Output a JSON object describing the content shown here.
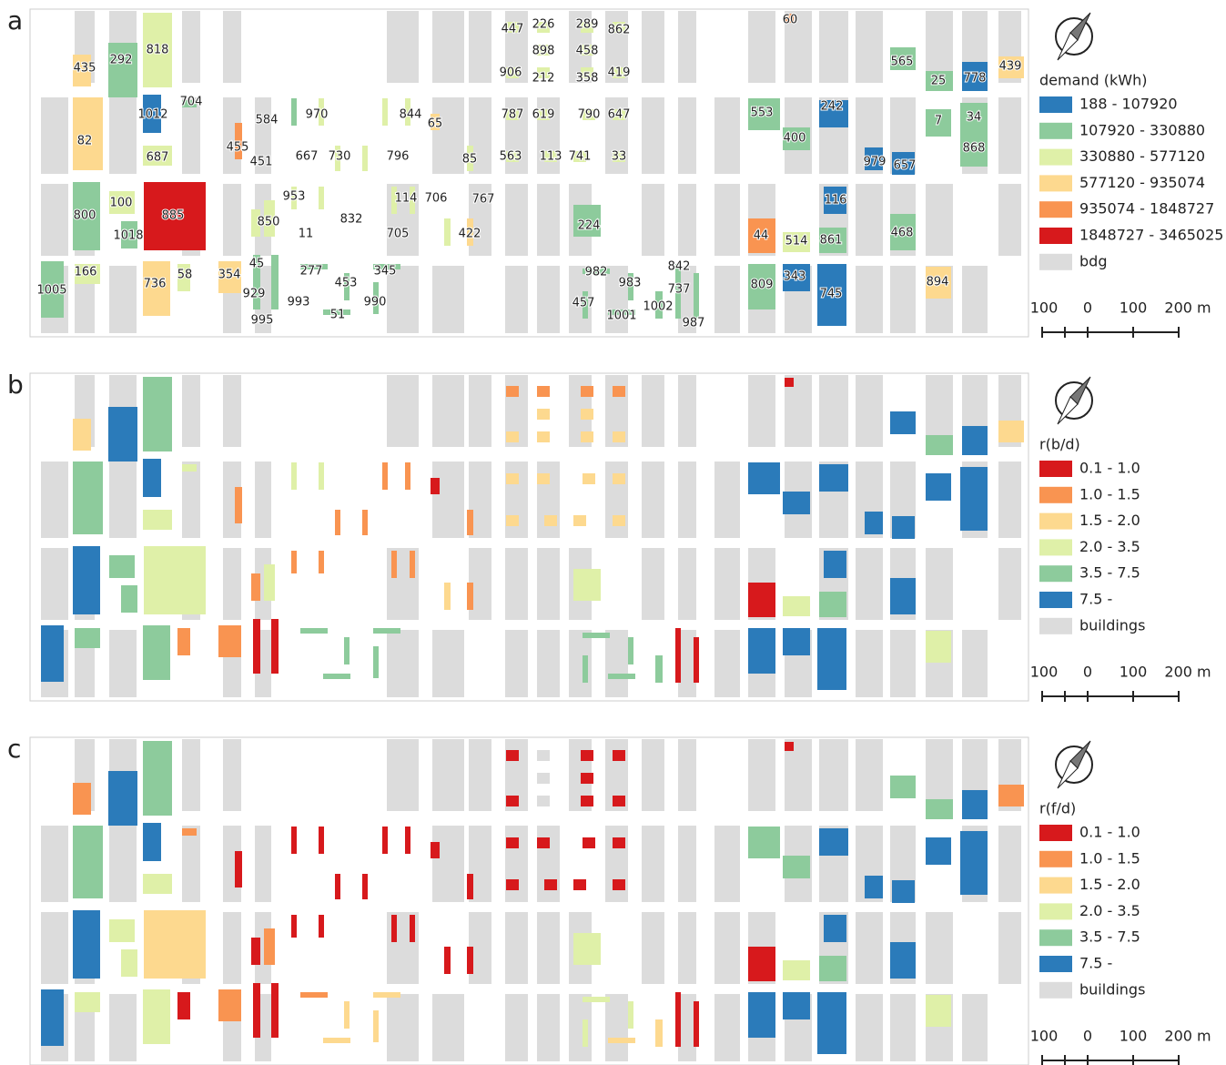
{
  "panels": [
    {
      "letter": "a",
      "legend": {
        "title": "demand (kWh)",
        "items": [
          {
            "label": "188 - 107920",
            "color": "#2b7bba"
          },
          {
            "label": "107920 - 330880",
            "color": "#8dcb9c"
          },
          {
            "label": "330880 - 577120",
            "color": "#dff0a8"
          },
          {
            "label": "577120 - 935074",
            "color": "#fdd98f"
          },
          {
            "label": "935074 - 1848727",
            "color": "#f99451"
          },
          {
            "label": "1848727 - 3465025",
            "color": "#d7191c"
          },
          {
            "label": "bdg",
            "color": "#dcdcdc"
          }
        ]
      },
      "scale": [
        "100",
        "0",
        "100",
        "200 m"
      ],
      "labels": [
        "447",
        "226",
        "289",
        "862",
        "898",
        "458",
        "435",
        "292",
        "818",
        "906",
        "212",
        "358",
        "419",
        "60",
        "565",
        "25",
        "778",
        "439",
        "1012",
        "704",
        "584",
        "970",
        "844",
        "65",
        "787",
        "619",
        "790",
        "647",
        "553",
        "242",
        "7",
        "34",
        "82",
        "687",
        "455",
        "451",
        "667",
        "730",
        "796",
        "85",
        "563",
        "113",
        "741",
        "33",
        "400",
        "979",
        "657",
        "868",
        "100",
        "953",
        "114",
        "706",
        "767",
        "116",
        "800",
        "885",
        "850",
        "832",
        "224",
        "1018",
        "11",
        "705",
        "422",
        "44",
        "514",
        "861",
        "468",
        "166",
        "45",
        "277",
        "345",
        "982",
        "983",
        "842",
        "354",
        "736",
        "58",
        "1005",
        "929",
        "453",
        "993",
        "990",
        "457",
        "1002",
        "737",
        "809",
        "343",
        "745",
        "894",
        "51",
        "995",
        "1001",
        "987"
      ]
    },
    {
      "letter": "b",
      "legend": {
        "title": "r(b/d)",
        "items": [
          {
            "label": "0.1 - 1.0",
            "color": "#d7191c"
          },
          {
            "label": "1.0 - 1.5",
            "color": "#f99451"
          },
          {
            "label": "1.5 - 2.0",
            "color": "#fdd98f"
          },
          {
            "label": "2.0 - 3.5",
            "color": "#dff0a8"
          },
          {
            "label": "3.5 - 7.5",
            "color": "#8dcb9c"
          },
          {
            "label": "7.5 -",
            "color": "#2b7bba"
          },
          {
            "label": "buildings",
            "color": "#dcdcdc"
          }
        ]
      },
      "scale": [
        "100",
        "0",
        "100",
        "200 m"
      ]
    },
    {
      "letter": "c",
      "legend": {
        "title": "r(f/d)",
        "items": [
          {
            "label": "0.1 - 1.0",
            "color": "#d7191c"
          },
          {
            "label": "1.0 - 1.5",
            "color": "#f99451"
          },
          {
            "label": "1.5 - 2.0",
            "color": "#fdd98f"
          },
          {
            "label": "2.0 - 3.5",
            "color": "#dff0a8"
          },
          {
            "label": "3.5 - 7.5",
            "color": "#8dcb9c"
          },
          {
            "label": "7.5 -",
            "color": "#2b7bba"
          },
          {
            "label": "buildings",
            "color": "#dcdcdc"
          }
        ]
      },
      "scale": [
        "100",
        "0",
        "100",
        "200 m"
      ]
    }
  ]
}
